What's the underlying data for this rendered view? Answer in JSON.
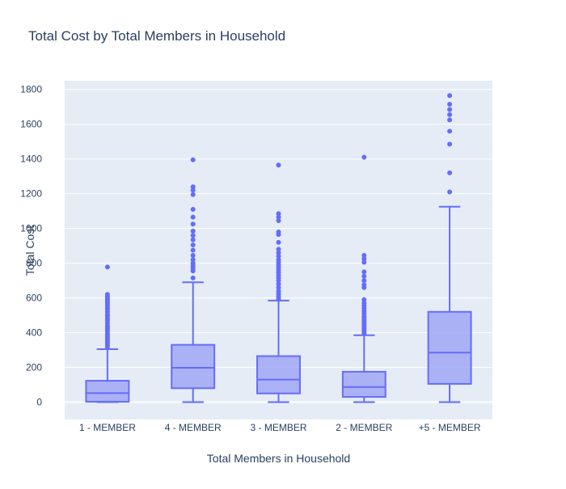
{
  "chart_data": {
    "type": "box",
    "title": "Total Cost by Total Members in Household",
    "xlabel": "Total Members in Household",
    "ylabel": "Total Cost",
    "ylim": [
      -100,
      1850
    ],
    "yticks": [
      0,
      200,
      400,
      600,
      800,
      1000,
      1200,
      1400,
      1600,
      1800
    ],
    "categories": [
      "1 - MEMBER",
      "4 - MEMBER",
      "3 - MEMBER",
      "2 - MEMBER",
      "+5 - MEMBER"
    ],
    "grid": true,
    "colors": {
      "plot_bg": "#e5ecf6",
      "grid": "#ffffff",
      "box_line": "#636efa",
      "box_fill": "#a1a7f4",
      "text": "#2a3f5f"
    },
    "boxes": [
      {
        "category": "1 - MEMBER",
        "min": 0,
        "q1": 2,
        "median": 52,
        "q3": 123,
        "upper_fence": 305,
        "outliers": [
          315,
          325,
          335,
          345,
          355,
          365,
          375,
          385,
          395,
          410,
          420,
          430,
          440,
          455,
          470,
          480,
          495,
          505,
          520,
          535,
          545,
          560,
          570,
          580,
          590,
          600,
          610,
          620,
          778
        ]
      },
      {
        "category": "4 - MEMBER",
        "min": 0,
        "q1": 80,
        "median": 198,
        "q3": 330,
        "upper_fence": 690,
        "outliers": [
          715,
          755,
          770,
          785,
          800,
          820,
          845,
          875,
          905,
          935,
          960,
          985,
          1025,
          1065,
          1110,
          1195,
          1220,
          1240,
          1395
        ]
      },
      {
        "category": "3 - MEMBER",
        "min": 0,
        "q1": 50,
        "median": 130,
        "q3": 265,
        "upper_fence": 585,
        "outliers": [
          595,
          610,
          625,
          640,
          660,
          680,
          700,
          715,
          730,
          745,
          760,
          775,
          790,
          805,
          820,
          840,
          860,
          880,
          920,
          965,
          980,
          1045,
          1065,
          1085,
          1365
        ]
      },
      {
        "category": "2 - MEMBER",
        "min": 0,
        "q1": 30,
        "median": 87,
        "q3": 175,
        "upper_fence": 385,
        "outliers": [
          395,
          405,
          415,
          425,
          435,
          445,
          455,
          465,
          475,
          485,
          495,
          510,
          525,
          540,
          555,
          570,
          590,
          660,
          675,
          700,
          725,
          750,
          805,
          825,
          845,
          1410
        ]
      },
      {
        "category": "+5 - MEMBER",
        "min": 0,
        "q1": 105,
        "median": 285,
        "q3": 520,
        "upper_fence": 1125,
        "outliers": [
          1210,
          1320,
          1485,
          1560,
          1625,
          1655,
          1685,
          1715,
          1765
        ]
      }
    ]
  }
}
